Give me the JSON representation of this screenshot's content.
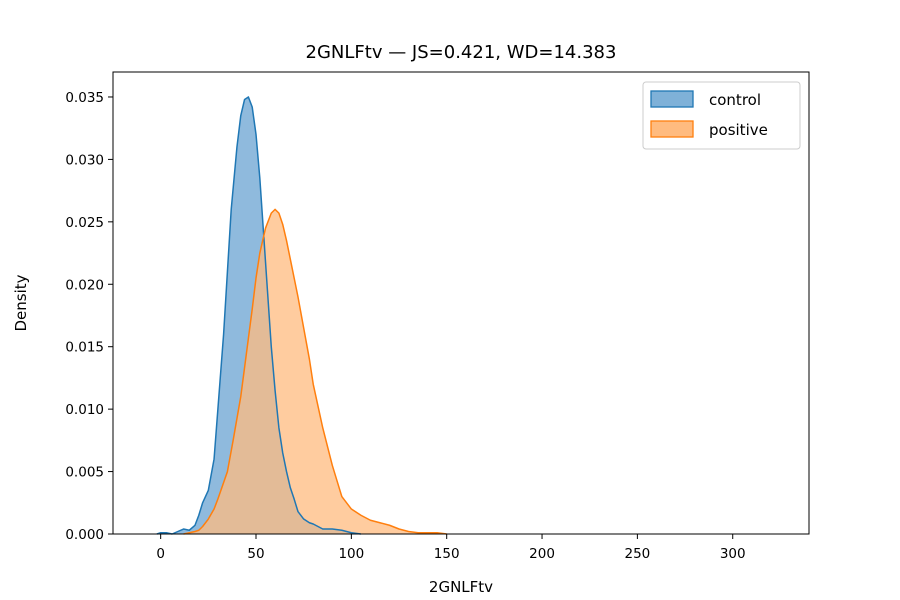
{
  "chart_data": {
    "type": "area",
    "title": "2GNLFtv — JS=0.421, WD=14.383",
    "xlabel": "2GNLFtv",
    "ylabel": "Density",
    "xlim": [
      -25,
      340
    ],
    "ylim": [
      0,
      0.037
    ],
    "xticks": [
      0,
      50,
      100,
      150,
      200,
      250,
      300
    ],
    "yticks": [
      0.0,
      0.005,
      0.01,
      0.015,
      0.02,
      0.025,
      0.03,
      0.035
    ],
    "ytick_labels": [
      "0.000",
      "0.005",
      "0.010",
      "0.015",
      "0.020",
      "0.025",
      "0.030",
      "0.035"
    ],
    "legend_position": "top-right",
    "grid": false,
    "series": [
      {
        "name": "control",
        "color": "#1f77b4",
        "fill": "#7fb1d8",
        "x": [
          -2,
          0,
          3,
          6,
          9,
          12,
          15,
          18,
          20,
          22,
          25,
          28,
          30,
          33,
          35,
          37,
          40,
          42,
          44,
          46,
          48,
          50,
          52,
          54,
          56,
          58,
          60,
          62,
          64,
          66,
          68,
          70,
          72,
          75,
          78,
          80,
          85,
          90,
          95,
          100,
          105
        ],
        "y": [
          0.0,
          0.0001,
          0.0001,
          0.0,
          0.0002,
          0.0004,
          0.0003,
          0.0007,
          0.0015,
          0.0025,
          0.0035,
          0.006,
          0.01,
          0.016,
          0.021,
          0.026,
          0.031,
          0.0335,
          0.0348,
          0.035,
          0.0342,
          0.032,
          0.0285,
          0.024,
          0.0195,
          0.015,
          0.0115,
          0.0085,
          0.0065,
          0.005,
          0.0037,
          0.0028,
          0.0018,
          0.0012,
          0.0009,
          0.0008,
          0.0004,
          0.0004,
          0.0003,
          0.0001,
          0.0
        ]
      },
      {
        "name": "positive",
        "color": "#ff7f0e",
        "fill": "#ffbb7f",
        "x": [
          12,
          15,
          18,
          20,
          22,
          25,
          28,
          30,
          35,
          38,
          42,
          45,
          48,
          50,
          52,
          55,
          58,
          60,
          62,
          64,
          66,
          68,
          70,
          72,
          75,
          78,
          80,
          85,
          90,
          95,
          100,
          105,
          110,
          115,
          120,
          125,
          130,
          135,
          140,
          145,
          150
        ],
        "y": [
          0.0,
          0.0001,
          0.0002,
          0.0003,
          0.0006,
          0.0012,
          0.002,
          0.0028,
          0.005,
          0.0075,
          0.011,
          0.0145,
          0.018,
          0.0205,
          0.0225,
          0.0245,
          0.0257,
          0.026,
          0.0257,
          0.0248,
          0.0235,
          0.022,
          0.0205,
          0.019,
          0.0165,
          0.014,
          0.012,
          0.0085,
          0.0055,
          0.003,
          0.002,
          0.0015,
          0.0011,
          0.0009,
          0.0007,
          0.0004,
          0.0002,
          0.0001,
          0.0001,
          0.0001,
          0.0
        ]
      }
    ]
  }
}
